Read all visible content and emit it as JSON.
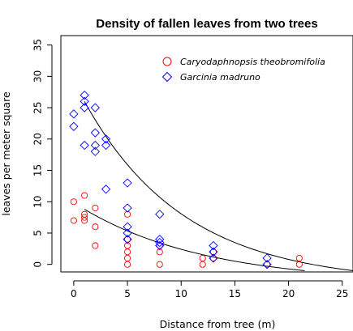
{
  "chart_data": {
    "type": "scatter",
    "title": "Density of fallen leaves from two trees",
    "xlabel": "Distance from tree (m)",
    "ylabel": "leaves per meter square",
    "xlim": [
      -1.2,
      26
    ],
    "ylim": [
      -1.2,
      36.5
    ],
    "xticks": [
      0,
      5,
      10,
      15,
      20,
      25
    ],
    "yticks": [
      0,
      5,
      10,
      15,
      20,
      25,
      30,
      35
    ],
    "grid": false,
    "legend_position": "top-right",
    "series": [
      {
        "name": "Caryodaphnopsis theobromifolia",
        "color": "#ff0000",
        "marker": "circle",
        "x": [
          0,
          0,
          1,
          1,
          1,
          1,
          2,
          2,
          2,
          5,
          5,
          5,
          5,
          5,
          5,
          8,
          8,
          8,
          12,
          12,
          13,
          13,
          18,
          21,
          21
        ],
        "y": [
          10,
          7,
          11,
          8,
          7.5,
          7,
          9,
          6,
          3,
          8,
          4,
          3,
          2,
          1,
          0,
          3,
          2,
          0,
          1,
          0,
          2,
          1,
          0,
          1,
          0
        ],
        "fit_curve": {
          "x": [
            1,
            21.5
          ],
          "y": [
            8.8,
            -1.0
          ]
        }
      },
      {
        "name": "Garcinia madruno",
        "color": "#0000ff",
        "marker": "diamond",
        "x": [
          0,
          0,
          1,
          1,
          1,
          1,
          2,
          2,
          2,
          2,
          3,
          3,
          3,
          5,
          5,
          5,
          5,
          5,
          8,
          8,
          8,
          8,
          13,
          13,
          13,
          18,
          18
        ],
        "y": [
          24,
          22,
          27,
          26,
          25,
          19,
          25,
          21,
          19,
          18,
          20,
          19,
          12,
          13,
          9,
          6,
          5,
          4,
          8,
          4,
          3.5,
          3,
          3,
          2,
          1,
          1,
          0
        ],
        "fit_curve": {
          "x": [
            1,
            26
          ],
          "y": [
            26,
            -1.0
          ]
        }
      }
    ]
  }
}
